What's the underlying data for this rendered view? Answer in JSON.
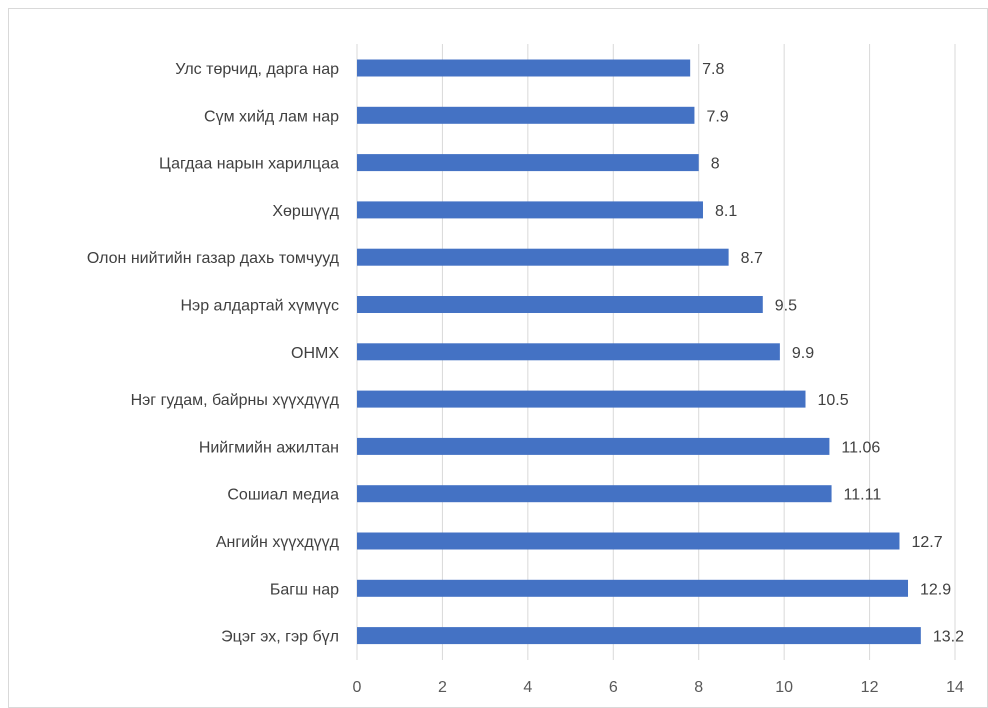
{
  "chart_data": {
    "type": "bar",
    "orientation": "horizontal",
    "title": "",
    "xlabel": "",
    "ylabel": "",
    "categories": [
      "Улс төрчид, дарга нар",
      "Сүм хийд лам нар",
      "Цагдаа нарын харилцаа",
      "Хөршүүд",
      "Олон нийтийн газар дахь томчууд",
      "Нэр алдартай хүмүүс",
      "ОНМХ",
      "Нэг гудам, байрны хүүхдүүд",
      "Нийгмийн ажилтан",
      "Сошиал медиа",
      "Ангийн хүүхдүүд",
      "Багш нар",
      "Эцэг эх, гэр бүл"
    ],
    "values": [
      7.8,
      7.9,
      8,
      8.1,
      8.7,
      9.5,
      9.9,
      10.5,
      11.06,
      11.11,
      12.7,
      12.9,
      13.2
    ],
    "value_labels": [
      "7.8",
      "7.9",
      "8",
      "8.1",
      "8.7",
      "9.5",
      "9.9",
      "10.5",
      "11.06",
      "11.11",
      "12.7",
      "12.9",
      "13.2"
    ],
    "xlim": [
      0,
      14
    ],
    "xticks": [
      0,
      2,
      4,
      6,
      8,
      10,
      12,
      14
    ],
    "grid": true,
    "legend": "none",
    "bar_color": "#4472c4",
    "grid_color": "#d9d9d9",
    "text_color": "#404040"
  }
}
